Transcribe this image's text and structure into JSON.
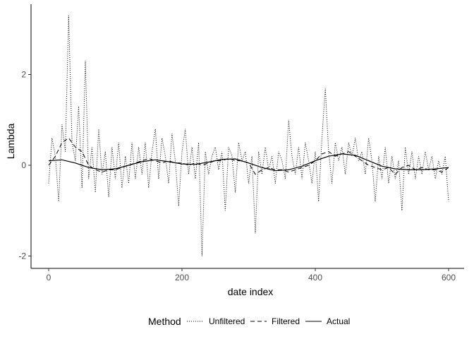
{
  "chart_data": {
    "type": "line",
    "xlabel": "date index",
    "ylabel": "Lambda",
    "xlim": [
      0,
      600
    ],
    "ylim": [
      -2,
      2
    ],
    "x_ticks": [
      "0",
      "200",
      "400",
      "600"
    ],
    "y_ticks": [
      "-2",
      "0",
      "2"
    ],
    "grid": false,
    "legend": {
      "title": "Method",
      "position": "bottom",
      "entries": [
        "Unfiltered",
        "Filtered",
        "Actual"
      ]
    },
    "series": [
      {
        "name": "Unfiltered",
        "style": "dotted",
        "x": [
          0,
          5,
          10,
          15,
          20,
          25,
          30,
          35,
          40,
          45,
          50,
          55,
          60,
          65,
          70,
          75,
          80,
          85,
          90,
          95,
          100,
          105,
          110,
          115,
          120,
          125,
          130,
          135,
          140,
          145,
          150,
          155,
          160,
          165,
          170,
          175,
          180,
          185,
          190,
          195,
          200,
          205,
          210,
          215,
          220,
          225,
          230,
          235,
          240,
          245,
          250,
          255,
          260,
          265,
          270,
          275,
          280,
          285,
          290,
          295,
          300,
          305,
          310,
          315,
          320,
          325,
          330,
          335,
          340,
          345,
          350,
          355,
          360,
          365,
          370,
          375,
          380,
          385,
          390,
          395,
          400,
          405,
          410,
          415,
          420,
          425,
          430,
          435,
          440,
          445,
          450,
          455,
          460,
          465,
          470,
          475,
          480,
          485,
          490,
          495,
          500,
          505,
          510,
          515,
          520,
          525,
          530,
          535,
          540,
          545,
          550,
          555,
          560,
          565,
          570,
          575,
          580,
          585,
          590,
          595,
          600
        ],
        "values": [
          -0.4,
          0.6,
          0.2,
          -0.8,
          0.9,
          0.3,
          3.3,
          0.5,
          0.1,
          1.3,
          -0.5,
          2.3,
          -0.3,
          0.4,
          -0.6,
          0.8,
          -0.2,
          0.3,
          -0.7,
          0.4,
          -0.3,
          0.5,
          -0.5,
          0.2,
          -0.4,
          0.5,
          -0.3,
          0.4,
          -0.2,
          0.5,
          -0.5,
          0.3,
          0.8,
          -0.3,
          0.6,
          0.2,
          -0.4,
          0.7,
          0.1,
          -0.9,
          0.3,
          0.8,
          -0.2,
          0.4,
          -0.3,
          0.5,
          -2.0,
          0.3,
          -0.2,
          0.2,
          0.4,
          -0.1,
          0.3,
          -1.0,
          0.4,
          0.2,
          -0.6,
          0.5,
          0.1,
          0.3,
          -0.4,
          0.2,
          -1.5,
          0.3,
          -0.2,
          0.4,
          -0.1,
          0.2,
          -0.4,
          0.3,
          0.1,
          -0.3,
          1.0,
          0.2,
          -0.2,
          0.4,
          -0.3,
          0.5,
          0.1,
          -0.4,
          0.3,
          -0.8,
          0.6,
          1.7,
          0.3,
          -0.4,
          0.5,
          0.1,
          0.4,
          -0.2,
          0.5,
          0.2,
          0.6,
          0.1,
          0.3,
          -0.2,
          0.6,
          0.1,
          -0.8,
          0.2,
          -0.3,
          0.4,
          -0.4,
          0.2,
          -0.3,
          0.1,
          -1.0,
          0.4,
          -0.2,
          0.3,
          -0.3,
          0.2,
          -0.2,
          0.3,
          -0.1,
          0.2,
          -0.3,
          0.1,
          -0.2,
          0.2,
          -0.8
        ]
      },
      {
        "name": "Filtered",
        "style": "dashed",
        "x": [
          0,
          10,
          20,
          30,
          40,
          50,
          60,
          70,
          80,
          90,
          100,
          110,
          120,
          130,
          140,
          150,
          160,
          170,
          180,
          190,
          200,
          210,
          220,
          230,
          240,
          250,
          260,
          270,
          280,
          290,
          300,
          310,
          320,
          330,
          340,
          350,
          360,
          370,
          380,
          390,
          400,
          410,
          420,
          430,
          440,
          450,
          460,
          470,
          480,
          490,
          500,
          510,
          520,
          530,
          540,
          550,
          560,
          570,
          580,
          590,
          600
        ],
        "values": [
          0.0,
          0.2,
          0.5,
          0.6,
          0.4,
          0.3,
          0.0,
          -0.1,
          -0.15,
          -0.1,
          -0.1,
          -0.05,
          0.0,
          0.05,
          0.1,
          0.15,
          0.1,
          0.05,
          0.1,
          0.05,
          0.05,
          0.0,
          0.05,
          0.0,
          0.05,
          0.1,
          0.1,
          0.15,
          0.1,
          0.1,
          0.05,
          -0.2,
          -0.1,
          -0.05,
          -0.1,
          -0.1,
          -0.15,
          -0.1,
          -0.05,
          0.0,
          0.1,
          0.25,
          0.3,
          0.2,
          0.25,
          0.3,
          0.2,
          0.1,
          0.0,
          -0.05,
          -0.1,
          -0.05,
          -0.2,
          -0.05,
          0.0,
          -0.1,
          -0.05,
          -0.1,
          -0.1,
          -0.15,
          -0.05
        ]
      },
      {
        "name": "Actual",
        "style": "solid",
        "x": [
          0,
          20,
          40,
          60,
          80,
          100,
          120,
          140,
          160,
          180,
          200,
          220,
          240,
          260,
          280,
          300,
          320,
          340,
          360,
          380,
          400,
          420,
          440,
          460,
          480,
          500,
          520,
          540,
          560,
          580,
          600
        ],
        "values": [
          0.1,
          0.12,
          0.05,
          -0.05,
          -0.1,
          -0.08,
          0.0,
          0.08,
          0.12,
          0.08,
          0.03,
          0.02,
          0.07,
          0.13,
          0.14,
          0.05,
          -0.05,
          -0.12,
          -0.1,
          -0.02,
          0.1,
          0.2,
          0.25,
          0.22,
          0.1,
          -0.02,
          -0.08,
          -0.1,
          -0.1,
          -0.08,
          -0.05
        ]
      }
    ]
  }
}
